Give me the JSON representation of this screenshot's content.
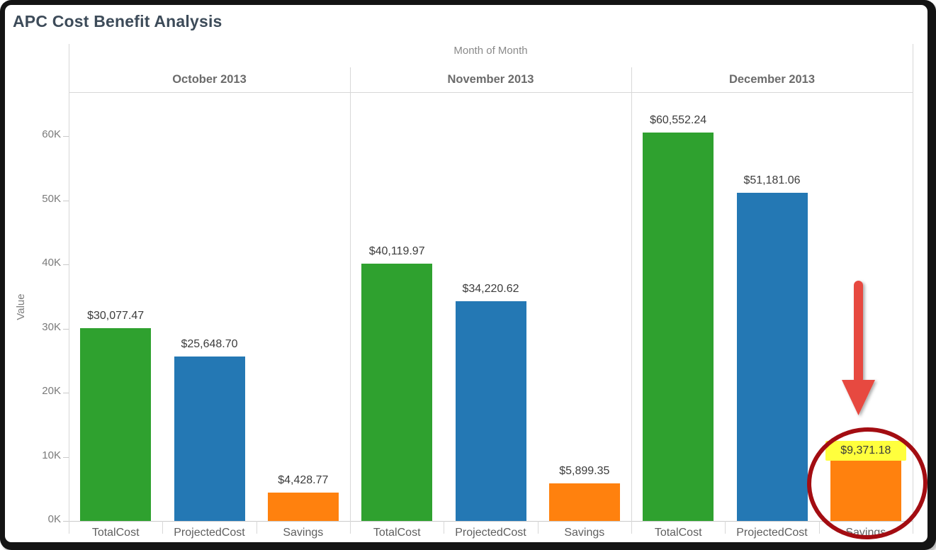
{
  "chart_data": {
    "type": "bar",
    "title": "APC Cost Benefit Analysis",
    "column_axis_title": "Month of Month",
    "ylabel": "Value",
    "ylim": [
      0,
      66900
    ],
    "yticks": [
      "0K",
      "10K",
      "20K",
      "30K",
      "40K",
      "50K",
      "60K"
    ],
    "ytick_values": [
      0,
      10000,
      20000,
      30000,
      40000,
      50000,
      60000
    ],
    "grid": false,
    "legend": "none",
    "categories": [
      "TotalCost",
      "ProjectedCost",
      "Savings"
    ],
    "series_colors": [
      "#2fa12f",
      "#2478b4",
      "#ff810e"
    ],
    "panels": [
      {
        "month": "October 2013",
        "values": [
          30077.47,
          25648.7,
          4428.77
        ],
        "value_labels": [
          "$30,077.47",
          "$25,648.70",
          "$4,428.77"
        ]
      },
      {
        "month": "November 2013",
        "values": [
          40119.97,
          34220.62,
          5899.35
        ],
        "value_labels": [
          "$40,119.97",
          "$34,220.62",
          "$5,899.35"
        ]
      },
      {
        "month": "December 2013",
        "values": [
          60552.24,
          51181.06,
          9371.18
        ],
        "value_labels": [
          "$60,552.24",
          "$51,181.06",
          "$9,371.18"
        ]
      }
    ],
    "annotation": {
      "target_month": "December 2013",
      "target_category": "Savings",
      "highlighted_label": "$9,371.18",
      "highlight_color": "#ffff3d",
      "arrow_color": "#e7493f",
      "circle_color": "#a30d12"
    }
  }
}
